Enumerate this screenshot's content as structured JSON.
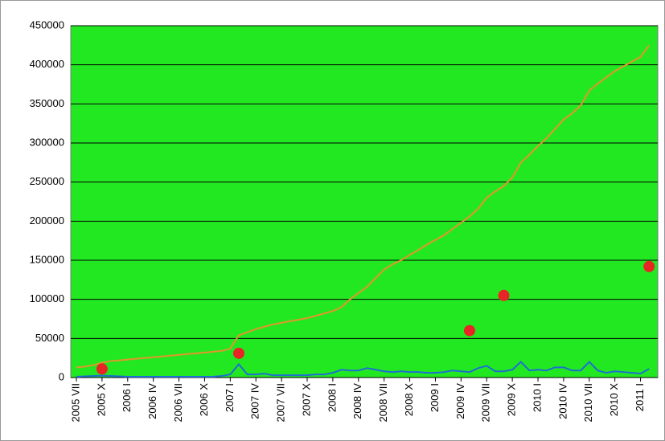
{
  "chart_data": {
    "type": "line",
    "categories": [
      "2005 VII",
      null,
      null,
      "2005 X",
      null,
      null,
      "2006 I",
      null,
      null,
      "2006 IV",
      null,
      null,
      "2006 VII",
      null,
      null,
      "2006 X",
      null,
      null,
      "2007 I",
      null,
      null,
      "2007 IV",
      null,
      null,
      "2007 VII",
      null,
      null,
      "2007 X",
      null,
      null,
      "2008 I",
      null,
      null,
      "2008 IV",
      null,
      null,
      "2008 VII",
      null,
      null,
      "2008 X",
      null,
      null,
      "2009 I",
      null,
      null,
      "2009 IV",
      null,
      null,
      "2009 VII",
      null,
      null,
      "2009 X",
      null,
      null,
      "2010 I",
      null,
      null,
      "2010 IV",
      null,
      null,
      "2010 VII",
      null,
      null,
      "2010 X",
      null,
      null,
      "2011 I",
      null
    ],
    "series": [
      {
        "type": "line",
        "color": "#e0962e",
        "values": [
          13000,
          14000,
          16000,
          19000,
          21000,
          22000,
          23000,
          24000,
          25000,
          26000,
          27000,
          28000,
          29000,
          30000,
          31000,
          32000,
          33000,
          34000,
          37000,
          54000,
          58000,
          62000,
          65000,
          68000,
          70000,
          72000,
          74000,
          76000,
          79000,
          82000,
          85000,
          90000,
          100000,
          108000,
          116000,
          127000,
          138000,
          145000,
          150000,
          157000,
          163000,
          170000,
          176000,
          182000,
          190000,
          198000,
          206000,
          216000,
          230000,
          238000,
          245000,
          256000,
          275000,
          285000,
          296000,
          306000,
          318000,
          330000,
          338000,
          348000,
          367000,
          376000,
          384000,
          392000,
          398000,
          404000,
          410000,
          425000
        ]
      },
      {
        "type": "line",
        "color": "#1e6fd0",
        "values": [
          1000,
          1500,
          2000,
          2500,
          2000,
          1500,
          1000,
          1000,
          1000,
          1000,
          1000,
          1000,
          1000,
          1000,
          1000,
          1000,
          1000,
          2000,
          4000,
          17000,
          4000,
          4000,
          5000,
          3000,
          3000,
          3000,
          3000,
          3000,
          4000,
          4000,
          6000,
          10000,
          9000,
          9000,
          12000,
          10000,
          8000,
          7000,
          8000,
          7000,
          7000,
          6000,
          6000,
          7000,
          9000,
          8000,
          7000,
          12000,
          15000,
          8000,
          8000,
          10000,
          20000,
          9000,
          10000,
          9000,
          13000,
          13000,
          9000,
          9000,
          20000,
          9000,
          6000,
          8000,
          7000,
          6000,
          5000,
          11000
        ]
      },
      {
        "type": "scatter",
        "color": "#e82424",
        "values": [
          null,
          null,
          null,
          11000,
          null,
          null,
          null,
          null,
          null,
          null,
          null,
          null,
          null,
          null,
          null,
          null,
          null,
          null,
          null,
          31000,
          null,
          null,
          null,
          null,
          null,
          null,
          null,
          null,
          null,
          null,
          null,
          null,
          null,
          null,
          null,
          null,
          null,
          null,
          null,
          null,
          null,
          null,
          null,
          null,
          null,
          null,
          60000,
          null,
          null,
          null,
          105000,
          null,
          null,
          null,
          null,
          null,
          null,
          null,
          null,
          null,
          null,
          null,
          null,
          null,
          null,
          null,
          null,
          142000
        ]
      }
    ],
    "ylim": [
      0,
      450000
    ],
    "yticks": [
      0,
      50000,
      100000,
      150000,
      200000,
      250000,
      300000,
      350000,
      400000,
      450000
    ],
    "grid": true,
    "plot_background": "#22e822"
  }
}
